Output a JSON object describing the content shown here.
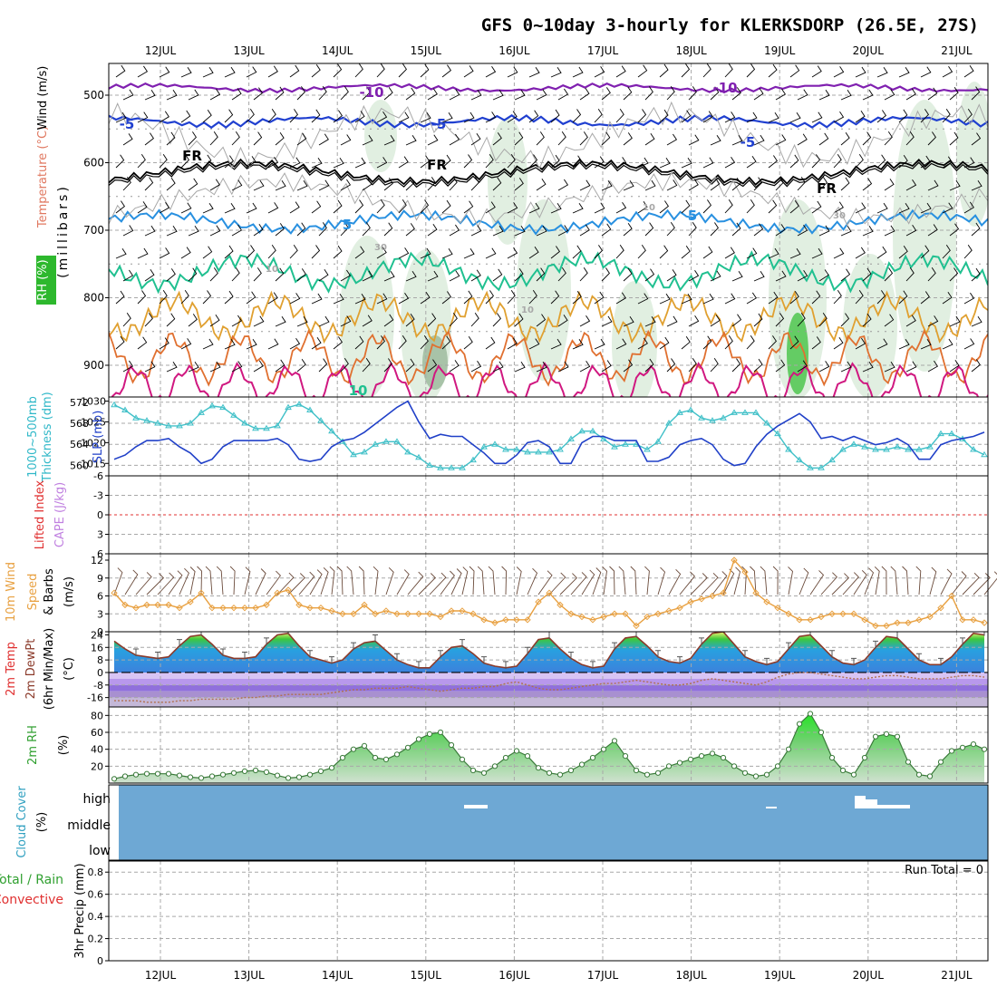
{
  "title": "GFS 0~10day 3-hourly for KLERKSDORP (26.5E, 27S)",
  "dates": [
    "12JUL",
    "13JUL",
    "14JUL",
    "15JUL",
    "16JUL",
    "17JUL",
    "18JUL",
    "19JUL",
    "20JUL",
    "21JUL"
  ],
  "panels": {
    "upper": {
      "label_rh": "RH (%)",
      "label_temp": "Temperature (°C)",
      "label_wind": "Wind (m/s)",
      "label_mb": "(millibars)",
      "yticks": [
        "500",
        "600",
        "700",
        "800",
        "900"
      ],
      "contour_labels": [
        "-10",
        "-10",
        "-5",
        "-5",
        "-5",
        "FR",
        "FR",
        "FR",
        "5",
        "5",
        "10",
        "10",
        "10",
        "30",
        "30",
        "10"
      ]
    },
    "slp": {
      "label_a": "1000~500mb",
      "label_b": "Thickness (dm)",
      "label_c": "SLP (mb)",
      "left_ticks": [
        "572",
        "568",
        "564",
        "560"
      ],
      "right_ticks": [
        "1030",
        "1025",
        "1020",
        "1015"
      ]
    },
    "cape": {
      "label_a": "Lifted Index",
      "label_b": "CAPE (J/kg)",
      "ticks": [
        "-6",
        "-3",
        "0",
        "3",
        "6"
      ]
    },
    "wind10": {
      "label_a": "10m Wind",
      "label_b": "Speed",
      "label_c": "& Barbs",
      "label_d": "(m/s)",
      "ticks": [
        "12",
        "9",
        "6",
        "3",
        "0"
      ]
    },
    "temp": {
      "label_a": "2m Temp",
      "label_b": "2m DewPt",
      "label_c": "(6hr Min/Max)",
      "label_d": "(°C)",
      "ticks": [
        "24",
        "16",
        "8",
        "0",
        "-8",
        "-16"
      ]
    },
    "rh": {
      "label_a": "2m RH",
      "label_b": "(%)",
      "ticks": [
        "80",
        "60",
        "40",
        "20"
      ]
    },
    "cloud": {
      "label_a": "Cloud Cover",
      "label_b": "(%)",
      "levels": [
        "high",
        "middle",
        "low"
      ]
    },
    "precip": {
      "label_a": "Total / Rain",
      "label_b": "Convective",
      "label_c": "3hr Precip (mm)",
      "ticks": [
        "0.8",
        "0.6",
        "0.4",
        "0.2",
        "0"
      ],
      "run_total": "Run Total = 0"
    }
  },
  "chart_data": [
    {
      "type": "line",
      "title": "1000~500mb Thickness (dm) / SLP (mb)",
      "x": [
        "11JUL12",
        "11JUL15",
        "11JUL18",
        "11JUL21",
        "12JUL00",
        "12JUL03",
        "12JUL06",
        "12JUL09",
        "12JUL12",
        "12JUL15",
        "12JUL18",
        "12JUL21",
        "13JUL00",
        "13JUL03",
        "13JUL06",
        "13JUL09",
        "13JUL12",
        "13JUL15",
        "13JUL18",
        "13JUL21",
        "14JUL00",
        "14JUL03",
        "14JUL06",
        "14JUL09",
        "14JUL12",
        "14JUL15",
        "14JUL18",
        "14JUL21",
        "15JUL00",
        "15JUL03",
        "15JUL06",
        "15JUL09",
        "15JUL12",
        "15JUL15",
        "15JUL18",
        "15JUL21",
        "16JUL00",
        "16JUL03",
        "16JUL06",
        "16JUL09",
        "16JUL12",
        "16JUL15",
        "16JUL18",
        "16JUL21",
        "17JUL00",
        "17JUL03",
        "17JUL06",
        "17JUL09",
        "17JUL12",
        "17JUL15",
        "17JUL18",
        "17JUL21",
        "18JUL00",
        "18JUL03",
        "18JUL06",
        "18JUL09",
        "18JUL12",
        "18JUL15",
        "18JUL18",
        "18JUL21",
        "19JUL00",
        "19JUL03",
        "19JUL06",
        "19JUL09",
        "19JUL12",
        "19JUL15",
        "19JUL18",
        "19JUL21",
        "20JUL00",
        "20JUL03",
        "20JUL06",
        "20JUL09",
        "20JUL12",
        "20JUL15",
        "20JUL18",
        "20JUL21",
        "21JUL00",
        "21JUL03",
        "21JUL06",
        "21JUL09",
        "21JUL12"
      ],
      "series": [
        {
          "name": "1000~500mb Thickness (dm)",
          "color": "#40c0c8",
          "values": [
            571.5,
            570.5,
            569,
            568.5,
            568,
            567.5,
            567.5,
            568,
            570,
            571.3,
            571,
            569.5,
            568,
            567,
            567,
            567.5,
            571,
            571.6,
            570.5,
            568.5,
            566.5,
            564.5,
            562,
            562.5,
            564,
            564.5,
            564.5,
            562.5,
            561.5,
            560,
            559.5,
            559.5,
            559.5,
            561,
            563.5,
            564,
            563,
            563,
            562.5,
            562.5,
            562.5,
            563,
            565,
            566.5,
            566.5,
            565,
            563.5,
            564,
            564,
            563,
            564.5,
            568,
            570,
            570.5,
            569,
            568.5,
            569,
            570,
            570,
            570,
            568,
            566,
            563,
            561,
            559.5,
            559.5,
            561,
            563,
            564,
            563.5,
            563,
            563,
            563.5,
            563,
            563,
            563.5,
            566,
            566,
            565,
            563,
            562
          ]
        },
        {
          "name": "SLP (mb)",
          "color": "#2040c8",
          "values": [
            1016,
            1017,
            1019,
            1020.5,
            1020.5,
            1021,
            1019,
            1017.5,
            1015,
            1016,
            1019,
            1020.5,
            1020.5,
            1020.5,
            1020.5,
            1021,
            1019.5,
            1016,
            1015.5,
            1016,
            1019,
            1020.5,
            1021,
            1022.5,
            1024.5,
            1026.5,
            1028.5,
            1030,
            1025,
            1021,
            1022,
            1021.5,
            1021.5,
            1019.5,
            1017.5,
            1015,
            1015,
            1017,
            1020,
            1020.5,
            1019,
            1015,
            1015,
            1020,
            1021.5,
            1021.5,
            1020.5,
            1020.5,
            1020.5,
            1015.5,
            1015.5,
            1016.5,
            1019.5,
            1020.5,
            1021,
            1019.5,
            1016,
            1014.5,
            1015,
            1019,
            1022,
            1024,
            1025.5,
            1027,
            1025,
            1021,
            1021.5,
            1020.5,
            1021.5,
            1020.5,
            1019.5,
            1020,
            1021,
            1019.5,
            1016,
            1016,
            1019.5,
            1020.5,
            1021,
            1021.5,
            1022.5
          ]
        }
      ],
      "ylim": [
        558,
        573
      ],
      "y2lim": [
        1012,
        1031
      ]
    },
    {
      "type": "line",
      "title": "Lifted Index / CAPE (J/kg)",
      "series": [
        {
          "name": "Lifted Index",
          "color": "#e03030",
          "values": [
            0
          ]
        }
      ],
      "ylim": [
        6,
        -6
      ]
    },
    {
      "type": "line",
      "title": "10m Wind Speed & Barbs (m/s)",
      "x": [
        "11JUL12",
        "11JUL15",
        "11JUL18",
        "11JUL21",
        "12JUL00",
        "12JUL03",
        "12JUL06",
        "12JUL09",
        "12JUL12",
        "12JUL15",
        "12JUL18",
        "12JUL21",
        "13JUL00",
        "13JUL03",
        "13JUL06",
        "13JUL09",
        "13JUL12",
        "13JUL15",
        "13JUL18",
        "13JUL21",
        "14JUL00",
        "14JUL03",
        "14JUL06",
        "14JUL09",
        "14JUL12",
        "14JUL15",
        "14JUL18",
        "14JUL21",
        "15JUL00",
        "15JUL03",
        "15JUL06",
        "15JUL09",
        "15JUL12",
        "15JUL15",
        "15JUL18",
        "15JUL21",
        "16JUL00",
        "16JUL03",
        "16JUL06",
        "16JUL09",
        "16JUL12",
        "16JUL15",
        "16JUL18",
        "16JUL21",
        "17JUL00",
        "17JUL03",
        "17JUL06",
        "17JUL09",
        "17JUL12",
        "17JUL15",
        "17JUL18",
        "17JUL21",
        "18JUL00",
        "18JUL03",
        "18JUL06",
        "18JUL09",
        "18JUL12",
        "18JUL15",
        "18JUL18",
        "18JUL21",
        "19JUL00",
        "19JUL03",
        "19JUL06",
        "19JUL09",
        "19JUL12",
        "19JUL15",
        "19JUL18",
        "19JUL21",
        "20JUL00",
        "20JUL03",
        "20JUL06",
        "20JUL09",
        "20JUL12",
        "20JUL15",
        "20JUL18",
        "20JUL21",
        "21JUL00",
        "21JUL03",
        "21JUL06",
        "21JUL09",
        "21JUL12"
      ],
      "series": [
        {
          "name": "10m Wind Speed",
          "color": "#e8a040",
          "values": [
            6.5,
            4.5,
            4,
            4.5,
            4.5,
            4.5,
            4,
            5,
            6.5,
            4,
            4,
            4,
            4,
            4,
            4.5,
            6.5,
            7,
            4.5,
            4,
            4,
            3.5,
            3,
            3,
            4.5,
            3,
            3.5,
            3,
            3,
            3,
            3,
            2.5,
            3.5,
            3.5,
            3,
            2,
            1.5,
            2,
            2,
            2,
            5,
            6.5,
            4.5,
            3,
            2.5,
            2,
            2.5,
            3,
            3,
            1,
            2.5,
            3,
            3.5,
            4,
            5,
            5.5,
            6,
            6.5,
            12,
            10,
            6.5,
            5,
            4,
            3,
            2,
            2,
            2.5,
            3,
            3,
            3,
            2,
            1,
            1,
            1.5,
            1.5,
            2,
            2.5,
            4,
            6,
            2,
            2,
            1.5
          ]
        }
      ],
      "ylim": [
        0,
        12
      ]
    },
    {
      "type": "area",
      "title": "2m Temp / 2m DewPt (6hr Min/Max) (°C)",
      "x": [
        "11JUL12",
        "11JUL15",
        "11JUL18",
        "11JUL21",
        "12JUL00",
        "12JUL03",
        "12JUL06",
        "12JUL09",
        "12JUL12",
        "12JUL15",
        "12JUL18",
        "12JUL21",
        "13JUL00",
        "13JUL03",
        "13JUL06",
        "13JUL09",
        "13JUL12",
        "13JUL15",
        "13JUL18",
        "13JUL21",
        "14JUL00",
        "14JUL03",
        "14JUL06",
        "14JUL09",
        "14JUL12",
        "14JUL15",
        "14JUL18",
        "14JUL21",
        "15JUL00",
        "15JUL03",
        "15JUL06",
        "15JUL09",
        "15JUL12",
        "15JUL15",
        "15JUL18",
        "15JUL21",
        "16JUL00",
        "16JUL03",
        "16JUL06",
        "16JUL09",
        "16JUL12",
        "16JUL15",
        "16JUL18",
        "16JUL21",
        "17JUL00",
        "17JUL03",
        "17JUL06",
        "17JUL09",
        "17JUL12",
        "17JUL15",
        "17JUL18",
        "17JUL21",
        "18JUL00",
        "18JUL03",
        "18JUL06",
        "18JUL09",
        "18JUL12",
        "18JUL15",
        "18JUL18",
        "18JUL21",
        "19JUL00",
        "19JUL03",
        "19JUL06",
        "19JUL09",
        "19JUL12",
        "19JUL15",
        "19JUL18",
        "19JUL21",
        "20JUL00",
        "20JUL03",
        "20JUL06",
        "20JUL09",
        "20JUL12",
        "20JUL15",
        "20JUL18",
        "20JUL21",
        "21JUL00",
        "21JUL03",
        "21JUL06",
        "21JUL09",
        "21JUL12"
      ],
      "series": [
        {
          "name": "2m Temp",
          "color": "#8b3a2a",
          "values": [
            20,
            15,
            11,
            10,
            9,
            10,
            17,
            23,
            24,
            18,
            11,
            9,
            9,
            10,
            18,
            24,
            25,
            17,
            10,
            8,
            6,
            8,
            15,
            19,
            20,
            14,
            8,
            5,
            3,
            3,
            10,
            16,
            17,
            12,
            6,
            4,
            3,
            4,
            12,
            21,
            22,
            15,
            9,
            5,
            3,
            4,
            15,
            22,
            23,
            17,
            10,
            7,
            6,
            9,
            18,
            25,
            26,
            18,
            10,
            7,
            5,
            7,
            15,
            23,
            24,
            17,
            10,
            6,
            5,
            8,
            16,
            23,
            22,
            15,
            8,
            5,
            5,
            10,
            18,
            25,
            24
          ]
        },
        {
          "name": "2m DewPt",
          "color": "#b07050",
          "values": [
            -18,
            -18,
            -18,
            -19,
            -19,
            -19,
            -18,
            -18,
            -17,
            -17,
            -17,
            -17,
            -16,
            -16,
            -15,
            -15,
            -14,
            -14,
            -14,
            -14,
            -13,
            -12,
            -11,
            -11,
            -10,
            -10,
            -10,
            -9,
            -10,
            -11,
            -12,
            -11,
            -10,
            -10,
            -9,
            -9,
            -7,
            -6,
            -8,
            -10,
            -11,
            -11,
            -10,
            -9,
            -8,
            -7,
            -7,
            -6,
            -5,
            -6,
            -7,
            -8,
            -8,
            -7,
            -5,
            -4,
            -5,
            -6,
            -7,
            -8,
            -6,
            -3,
            -1,
            0,
            0,
            -1,
            -2,
            -3,
            -4,
            -4,
            -3,
            -2,
            -2,
            -3,
            -4,
            -4,
            -4,
            -3,
            -2,
            -2,
            -3
          ]
        }
      ],
      "ylim": [
        -22,
        26
      ]
    },
    {
      "type": "area",
      "title": "2m RH (%)",
      "x": [
        "11JUL12",
        "11JUL15",
        "11JUL18",
        "11JUL21",
        "12JUL00",
        "12JUL03",
        "12JUL06",
        "12JUL09",
        "12JUL12",
        "12JUL15",
        "12JUL18",
        "12JUL21",
        "13JUL00",
        "13JUL03",
        "13JUL06",
        "13JUL09",
        "13JUL12",
        "13JUL15",
        "13JUL18",
        "13JUL21",
        "14JUL00",
        "14JUL03",
        "14JUL06",
        "14JUL09",
        "14JUL12",
        "14JUL15",
        "14JUL18",
        "14JUL21",
        "15JUL00",
        "15JUL03",
        "15JUL06",
        "15JUL09",
        "15JUL12",
        "15JUL15",
        "15JUL18",
        "15JUL21",
        "16JUL00",
        "16JUL03",
        "16JUL06",
        "16JUL09",
        "16JUL12",
        "16JUL15",
        "16JUL18",
        "16JUL21",
        "17JUL00",
        "17JUL03",
        "17JUL06",
        "17JUL09",
        "17JUL12",
        "17JUL15",
        "17JUL18",
        "17JUL21",
        "18JUL00",
        "18JUL03",
        "18JUL06",
        "18JUL09",
        "18JUL12",
        "18JUL15",
        "18JUL18",
        "18JUL21",
        "19JUL00",
        "19JUL03",
        "19JUL06",
        "19JUL09",
        "19JUL12",
        "19JUL15",
        "19JUL18",
        "19JUL21",
        "20JUL00",
        "20JUL03",
        "20JUL06",
        "20JUL09",
        "20JUL12",
        "20JUL15",
        "20JUL18",
        "20JUL21",
        "21JUL00",
        "21JUL03",
        "21JUL06",
        "21JUL09",
        "21JUL12"
      ],
      "series": [
        {
          "name": "2m RH",
          "color": "#3a7a3a",
          "values": [
            5,
            8,
            10,
            11,
            11,
            11,
            9,
            7,
            6,
            8,
            10,
            12,
            14,
            15,
            13,
            9,
            6,
            7,
            10,
            14,
            18,
            30,
            40,
            44,
            30,
            28,
            34,
            42,
            52,
            58,
            60,
            45,
            28,
            15,
            12,
            20,
            30,
            38,
            32,
            18,
            12,
            10,
            15,
            22,
            30,
            40,
            50,
            32,
            15,
            10,
            12,
            20,
            24,
            28,
            32,
            35,
            30,
            20,
            12,
            8,
            10,
            20,
            40,
            70,
            82,
            60,
            30,
            15,
            10,
            30,
            55,
            58,
            55,
            25,
            10,
            8,
            25,
            38,
            42,
            46,
            40
          ]
        }
      ],
      "ylim": [
        0,
        90
      ]
    },
    {
      "type": "bar",
      "title": "Cloud Cover (%)",
      "categories": [
        "high",
        "middle",
        "low"
      ],
      "values": [
        0,
        0,
        0
      ]
    },
    {
      "type": "bar",
      "title": "3hr Precip (mm)",
      "values": [
        0
      ],
      "ylim": [
        0,
        0.9
      ]
    }
  ]
}
